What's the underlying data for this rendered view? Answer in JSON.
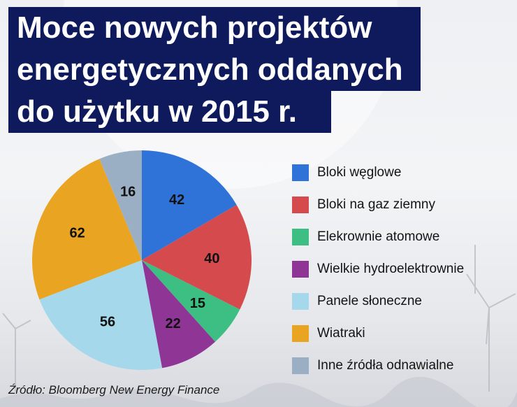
{
  "title": {
    "lines": [
      "Moce nowych projektów",
      "energetycznych oddanych",
      "do użytku w 2015 r."
    ]
  },
  "source": "Źródło:  Bloomberg New Energy Finance",
  "chart_data": {
    "type": "pie",
    "title": "Moce nowych projektów energetycznych oddanych do użytku w 2015 r.",
    "categories": [
      "Bloki węglowe",
      "Bloki na gaz ziemny",
      "Elekrownie atomowe",
      "Wielkie hydroelektrownie",
      "Panele słoneczne",
      "Wiatraki",
      "Inne źródła odnawialne"
    ],
    "values": [
      42,
      40,
      15,
      22,
      56,
      62,
      16
    ],
    "colors": [
      "#2f72d8",
      "#d44a4d",
      "#3dbe82",
      "#8e3596",
      "#a6d8ec",
      "#e9a521",
      "#9aaec4"
    ],
    "legend_position": "right"
  }
}
